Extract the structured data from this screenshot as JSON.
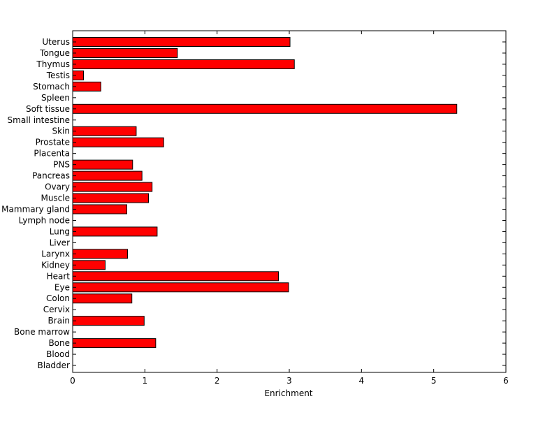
{
  "chart_data": {
    "type": "bar",
    "orientation": "horizontal",
    "xlabel": "Enrichment",
    "ylabel": "",
    "title": "",
    "xlim": [
      0,
      6
    ],
    "xticks": [
      0,
      1,
      2,
      3,
      4,
      5,
      6
    ],
    "grid": false,
    "legend": "none",
    "bar_color": "#ff0000",
    "bar_edge_color": "#000000",
    "categories": [
      "Uterus",
      "Tongue",
      "Thymus",
      "Testis",
      "Stomach",
      "Spleen",
      "Soft tissue",
      "Small intestine",
      "Skin",
      "Prostate",
      "Placenta",
      "PNS",
      "Pancreas",
      "Ovary",
      "Muscle",
      "Mammary gland",
      "Lymph node",
      "Lung",
      "Liver",
      "Larynx",
      "Kidney",
      "Heart",
      "Eye",
      "Colon",
      "Cervix",
      "Brain",
      "Bone marrow",
      "Bone",
      "Blood",
      "Bladder"
    ],
    "values": [
      3.01,
      1.45,
      3.07,
      0.15,
      0.39,
      0,
      5.32,
      0,
      0.88,
      1.26,
      0,
      0.83,
      0.96,
      1.1,
      1.05,
      0.75,
      0,
      1.17,
      0,
      0.76,
      0.45,
      2.85,
      2.99,
      0.82,
      0,
      0.99,
      0,
      1.15,
      0,
      0
    ]
  }
}
